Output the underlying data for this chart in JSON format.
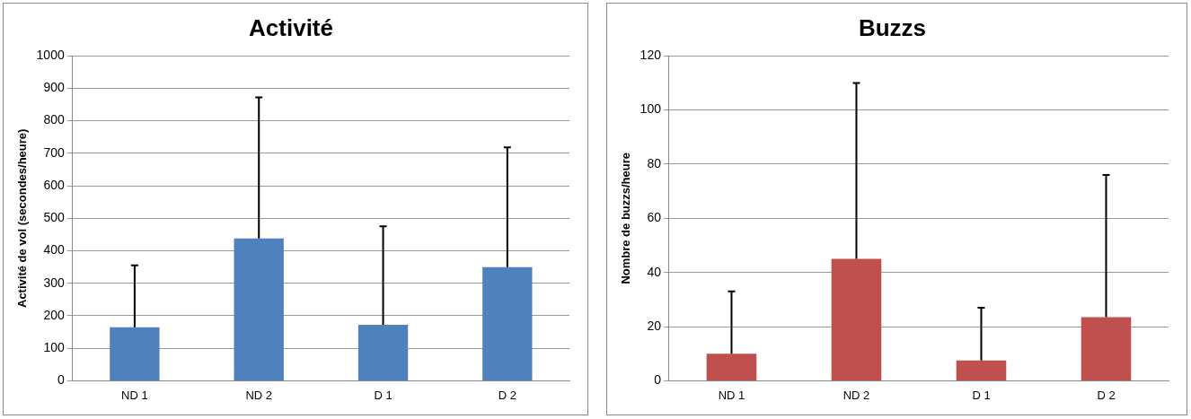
{
  "chart_data": [
    {
      "type": "bar",
      "title": "Activité",
      "ylabel": "Activité de vol (secondes/heure)",
      "categories": [
        "ND 1",
        "ND 2",
        "D 1",
        "D 2"
      ],
      "series": [
        {
          "color": "#4f81bd",
          "values": [
            165,
            438,
            172,
            350
          ],
          "errors": [
            [
              165,
              355
            ],
            [
              438,
              872
            ],
            [
              172,
              475
            ],
            [
              350,
              718
            ]
          ]
        }
      ],
      "ylim": [
        0,
        1000
      ],
      "yticks": [
        0,
        100,
        200,
        300,
        400,
        500,
        600,
        700,
        800,
        900,
        1000
      ],
      "grid": "y",
      "legend": false
    },
    {
      "type": "bar",
      "title": "Buzzs",
      "ylabel": "Nombre de buzzs/heure",
      "categories": [
        "ND 1",
        "ND 2",
        "D 1",
        "D 2"
      ],
      "series": [
        {
          "color": "#c0504d",
          "values": [
            10,
            45,
            7.5,
            23.5
          ],
          "errors": [
            [
              10,
              33
            ],
            [
              45,
              110
            ],
            [
              7.5,
              27
            ],
            [
              23.5,
              76
            ]
          ]
        }
      ],
      "ylim": [
        0,
        120
      ],
      "yticks": [
        0,
        20,
        40,
        60,
        80,
        100,
        120
      ],
      "grid": "y",
      "legend": false
    }
  ]
}
